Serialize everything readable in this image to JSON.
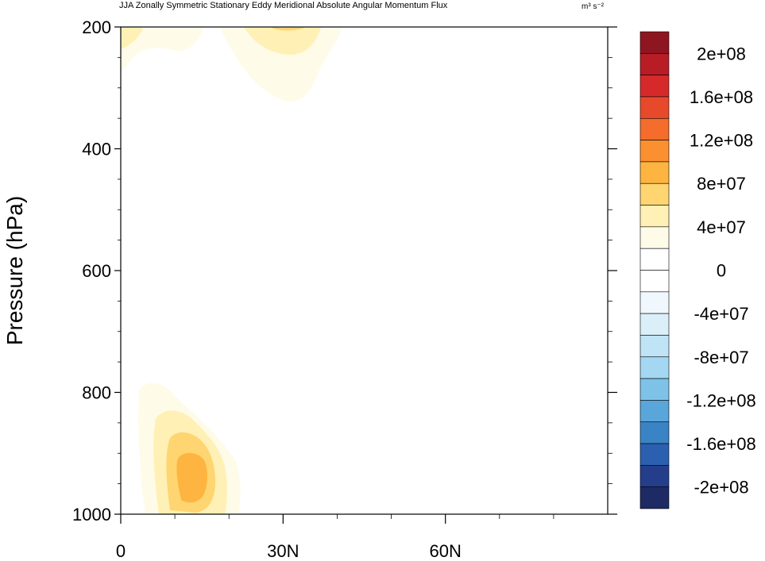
{
  "chart_data": {
    "type": "contour",
    "title": "JJA Zonally Symmetric Stationary Eddy Meridional Absolute Angular Momentum Flux",
    "units": "m³ s⁻²",
    "xlabel": "",
    "ylabel": "Pressure (hPa)",
    "xlim": [
      0,
      90
    ],
    "ylim": [
      1000,
      200
    ],
    "x_ticks": [
      0,
      30,
      60
    ],
    "x_tick_labels": [
      "0",
      "30N",
      "60N"
    ],
    "y_ticks": [
      200,
      400,
      600,
      800,
      1000
    ],
    "y_tick_labels": [
      "200",
      "400",
      "600",
      "800",
      "1000"
    ],
    "colorbar": {
      "labels": [
        "2e+08",
        "1.6e+08",
        "1.2e+08",
        "8e+07",
        "4e+07",
        "0",
        "-4e+07",
        "-8e+07",
        "-1.2e+08",
        "-1.6e+08",
        "-2e+08"
      ],
      "label_values": [
        200000000,
        160000000,
        120000000,
        80000000,
        40000000,
        0,
        -40000000,
        -80000000,
        -120000000,
        -160000000,
        -200000000
      ],
      "colors": [
        "#8e1620",
        "#b81d26",
        "#d62a2a",
        "#e64a2b",
        "#f46d2d",
        "#fb9030",
        "#feb440",
        "#fed571",
        "#fff0b5",
        "#fffbe9",
        "#ffffff",
        "#ffffff",
        "#f0f8fd",
        "#dbeff8",
        "#bfe4f5",
        "#a3d7f2",
        "#7ec2e8",
        "#5aa6da",
        "#3a84c6",
        "#2b60b0",
        "#253e8c",
        "#1d2a63"
      ]
    },
    "contour_features": [
      {
        "name": "lower-tropospheric-positive-maximum",
        "center_lat": 12,
        "center_pressure": 925,
        "max_value": 120000000
      },
      {
        "name": "upper-tropospheric-positive-flux",
        "center_lat": 30,
        "center_pressure": 200,
        "max_value": 80000000
      },
      {
        "name": "upper-tropospheric-positive-flux-equator",
        "center_lat": 2,
        "center_pressure": 200,
        "max_value": 40000000
      }
    ]
  }
}
